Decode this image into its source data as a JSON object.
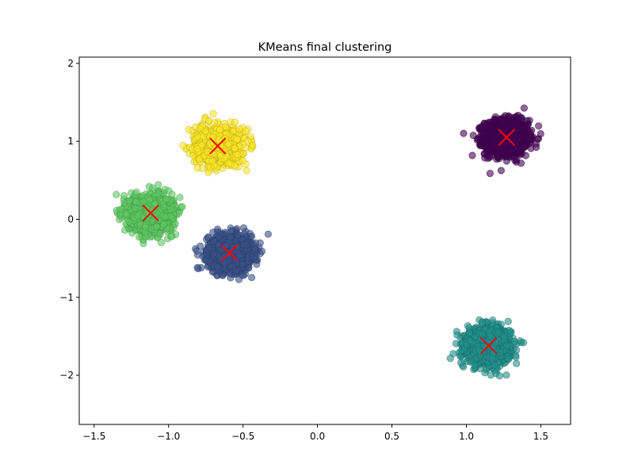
{
  "chart_data": {
    "type": "scatter",
    "title": "KMeans final clustering",
    "xlabel": "",
    "ylabel": "",
    "xlim": [
      -1.6,
      1.7
    ],
    "ylim": [
      -2.63,
      2.08
    ],
    "xticks": [
      -1.5,
      -1.0,
      -0.5,
      0.0,
      0.5,
      1.0,
      1.5
    ],
    "xtick_labels": [
      "−1.5",
      "−1.0",
      "−0.5",
      "0.0",
      "0.5",
      "1.0",
      "1.5"
    ],
    "yticks": [
      -2,
      -1,
      0,
      1,
      2
    ],
    "ytick_labels": [
      "−2",
      "−1",
      "0",
      "1",
      "2"
    ],
    "grid": false,
    "legend": false,
    "clusters": [
      {
        "id": 0,
        "color": "#440154",
        "center": [
          1.27,
          1.05
        ],
        "spread": [
          0.13,
          0.2
        ],
        "n": 1400
      },
      {
        "id": 1,
        "color": "#3b528b",
        "center": [
          -0.59,
          -0.43
        ],
        "spread": [
          0.13,
          0.2
        ],
        "n": 1400
      },
      {
        "id": 2,
        "color": "#21918c",
        "center": [
          1.15,
          -1.62
        ],
        "spread": [
          0.13,
          0.2
        ],
        "n": 1400
      },
      {
        "id": 3,
        "color": "#5ec962",
        "center": [
          -1.12,
          0.08
        ],
        "spread": [
          0.13,
          0.2
        ],
        "n": 1400
      },
      {
        "id": 4,
        "color": "#fde725",
        "center": [
          -0.67,
          0.94
        ],
        "spread": [
          0.13,
          0.2
        ],
        "n": 1400
      }
    ],
    "centroid_marker": {
      "symbol": "x",
      "color": "#ff0000"
    },
    "point_alpha": 0.6
  }
}
